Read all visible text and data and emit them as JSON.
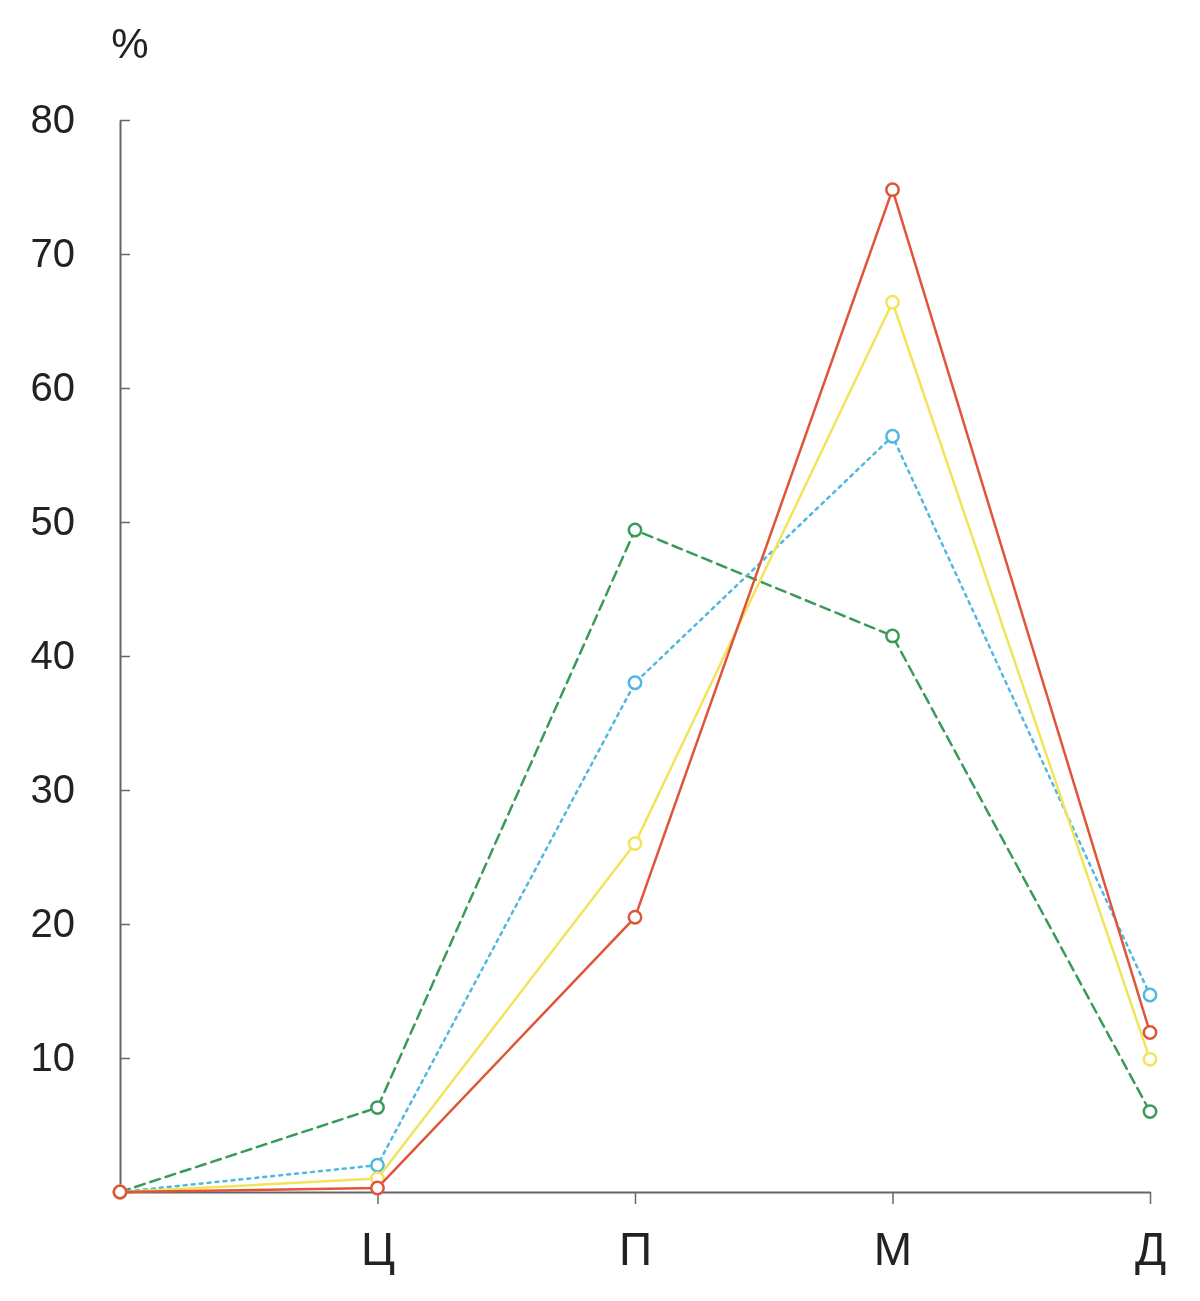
{
  "chart_data": {
    "type": "line",
    "ylabel": "%",
    "categories": [
      null,
      "Ц",
      "П",
      "М",
      "Д"
    ],
    "series": [
      {
        "color": "#3a9a5a",
        "line_style": "dashed",
        "values": [
          0,
          6.3,
          49.4,
          41.5,
          6
        ]
      },
      {
        "color": "#4fb8e0",
        "line_style": "dotted",
        "values": [
          0,
          2,
          38,
          56.4,
          14.7
        ]
      },
      {
        "color": "#f2e45a",
        "line_style": "solid",
        "values": [
          0,
          1,
          26,
          66.4,
          9.9
        ]
      },
      {
        "color": "#e0553a",
        "line_style": "solid",
        "values": [
          0,
          0.3,
          20.5,
          74.8,
          11.9
        ]
      }
    ],
    "ylim": [
      0,
      80
    ],
    "yticks": [
      {
        "value": 0,
        "label": null
      },
      10,
      20,
      30,
      40,
      50,
      60,
      70,
      80
    ],
    "marker": "circle",
    "grid": false
  }
}
